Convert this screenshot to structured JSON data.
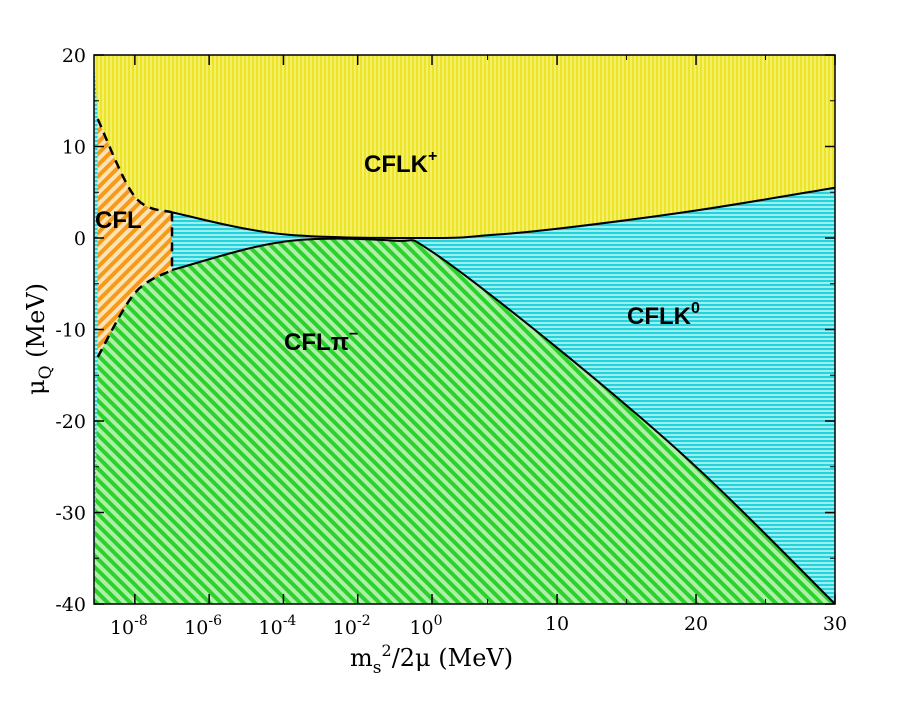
{
  "chart_data": {
    "type": "phase_diagram",
    "title": "",
    "xlabel": {
      "main": "m",
      "sub": "s",
      "sup": "2",
      "rest": "/2μ  (MeV)"
    },
    "ylabel": {
      "main": "μ",
      "sub": "Q",
      "rest": "  (MeV)"
    },
    "ylim": [
      -40,
      20
    ],
    "y_ticks": [
      20,
      10,
      0,
      -10,
      -20,
      -30,
      -40
    ],
    "x_ticks_log": [
      {
        "base": "10",
        "exp": "-8"
      },
      {
        "base": "10",
        "exp": "-6"
      },
      {
        "base": "10",
        "exp": "-4"
      },
      {
        "base": "10",
        "exp": "-2"
      },
      {
        "base": "10",
        "exp": "0"
      }
    ],
    "x_ticks_linear": [
      "10",
      "20",
      "30"
    ],
    "xlim_linear": [
      1,
      30
    ],
    "regions": [
      {
        "name": "CFLK+",
        "label": "CFLK",
        "sup": "+",
        "color": "#f2ee3a"
      },
      {
        "name": "CFLK0",
        "label": "CFLK",
        "sup": "0",
        "color": "#35d9e0"
      },
      {
        "name": "CFLpi-",
        "label": "CFLπ",
        "sup": "−",
        "color": "#2bd52b"
      },
      {
        "name": "CFL",
        "label": "CFL",
        "sup": "",
        "color": "#f5a020"
      }
    ],
    "boundaries": {
      "upper": [
        [
          1e-09,
          13
        ],
        [
          1e-08,
          4.5
        ],
        [
          1e-07,
          2.8
        ],
        [
          0.0001,
          0.4
        ],
        [
          1,
          0
        ],
        [
          5,
          0.3
        ],
        [
          10,
          1.0
        ],
        [
          20,
          3.0
        ],
        [
          30,
          5.5
        ]
      ],
      "lower": [
        [
          1e-09,
          -13
        ],
        [
          1e-08,
          -6
        ],
        [
          1e-07,
          -3.5
        ],
        [
          0.0001,
          -0.4
        ],
        [
          0.1,
          -0.3
        ],
        [
          1,
          -1.5
        ],
        [
          10,
          -12
        ],
        [
          20,
          -25
        ],
        [
          30,
          -40
        ]
      ]
    }
  }
}
